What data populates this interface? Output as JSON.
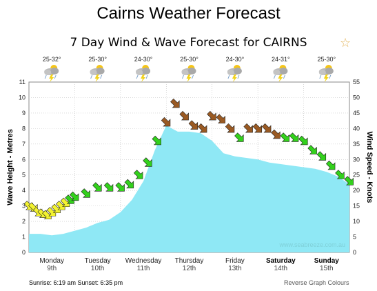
{
  "page": {
    "title": "Cairns Weather Forecast",
    "sunrise_sunset": "Sunrise: 6:19 am  Sunset: 6:35 pm",
    "reverse_colours": "Reverse Graph Colours",
    "favorite_icon": "star-icon"
  },
  "chart_data": {
    "type": "area",
    "title": "7 Day Wind & Wave Forecast for CAIRNS",
    "ylabel_left": "Wave Height - Metres",
    "ylabel_right": "Wind Speed - Knots",
    "ylim_left": [
      0,
      11
    ],
    "ylim_right": [
      0,
      55
    ],
    "yticks_left": [
      "0",
      "1",
      "2",
      "3",
      "4",
      "5",
      "6",
      "7",
      "8",
      "9",
      "10",
      "11"
    ],
    "yticks_right": [
      "0",
      "5",
      "10",
      "15",
      "20",
      "25",
      "30",
      "35",
      "40",
      "45",
      "50",
      "55"
    ],
    "grid": true,
    "watermark": "www.seabreeze.com.au",
    "colors": {
      "wave_fill": "#8fe8f5",
      "wind_low": "#f2f230",
      "wind_mid": "#33d11c",
      "wind_high": "#9a5a23"
    },
    "days": [
      {
        "name": "Monday",
        "date": "9th",
        "bold": false,
        "temp": "25-32°",
        "icon": "storm-cloud-icon"
      },
      {
        "name": "Tuesday",
        "date": "10th",
        "bold": false,
        "temp": "25-30°",
        "icon": "storm-cloud-icon"
      },
      {
        "name": "Wednesday",
        "date": "11th",
        "bold": false,
        "temp": "24-30°",
        "icon": "storm-cloud-icon"
      },
      {
        "name": "Thursday",
        "date": "12th",
        "bold": false,
        "temp": "25-30°",
        "icon": "storm-cloud-icon"
      },
      {
        "name": "Friday",
        "date": "13th",
        "bold": false,
        "temp": "24-30°",
        "icon": "storm-cloud-icon"
      },
      {
        "name": "Saturday",
        "date": "14th",
        "bold": true,
        "temp": "24-31°",
        "icon": "storm-cloud-icon"
      },
      {
        "name": "Sunday",
        "date": "15th",
        "bold": true,
        "temp": "25-30°",
        "icon": "storm-cloud-icon"
      }
    ],
    "series": [
      {
        "name": "Wave Height",
        "units": "m",
        "x_days": [
          0,
          0.25,
          0.5,
          0.75,
          1,
          1.25,
          1.5,
          1.75,
          2,
          2.25,
          2.5,
          2.75,
          3,
          3.25,
          3.5,
          3.75,
          4,
          4.25,
          4.5,
          4.75,
          5,
          5.25,
          5.5,
          5.75,
          6,
          6.25,
          6.5,
          6.75,
          7
        ],
        "values": [
          1.2,
          1.2,
          1.1,
          1.2,
          1.4,
          1.6,
          1.9,
          2.1,
          2.6,
          3.4,
          4.6,
          6.6,
          8.2,
          7.8,
          7.8,
          7.7,
          7.2,
          6.4,
          6.2,
          6.1,
          6.0,
          5.8,
          5.7,
          5.6,
          5.5,
          5.4,
          5.2,
          4.9,
          4.4
        ]
      },
      {
        "name": "Wind Speed",
        "units": "kn",
        "x_days": [
          0,
          0.1,
          0.2,
          0.3,
          0.4,
          0.5,
          0.6,
          0.7,
          0.8,
          0.9,
          1,
          1.25,
          1.5,
          1.75,
          2,
          2.2,
          2.4,
          2.6,
          2.8,
          3,
          3.2,
          3.4,
          3.6,
          3.8,
          4,
          4.2,
          4.4,
          4.6,
          4.8,
          5,
          5.2,
          5.4,
          5.6,
          5.8,
          6,
          6.2,
          6.4,
          6.6,
          6.8,
          7
        ],
        "values": [
          15,
          14.5,
          13,
          12.5,
          12,
          13,
          14,
          15,
          16,
          17,
          18,
          19,
          21,
          21,
          21,
          22,
          25,
          29,
          36,
          42,
          48,
          44,
          41,
          40,
          44,
          43,
          40,
          37,
          40,
          40,
          40,
          38,
          37,
          37,
          36,
          33,
          31,
          28,
          25,
          23
        ]
      }
    ]
  }
}
